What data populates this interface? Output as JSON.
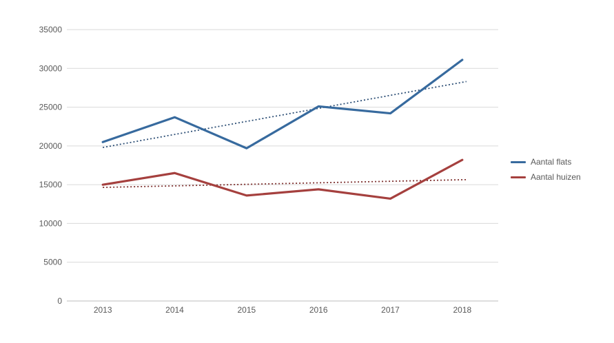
{
  "chart_data": {
    "type": "line",
    "title": "",
    "xlabel": "",
    "ylabel": "",
    "categories": [
      "2013",
      "2014",
      "2015",
      "2016",
      "2017",
      "2018"
    ],
    "series": [
      {
        "name": "Aantal flats",
        "color": "#376a9e",
        "trend_color": "#2b4d74",
        "values": [
          20500,
          23700,
          19700,
          25100,
          24200,
          31100
        ],
        "trendline": {
          "type": "linear",
          "start": 19800,
          "end": 28300
        }
      },
      {
        "name": "Aantal huizen",
        "color": "#a5403e",
        "trend_color": "#7d2f2d",
        "values": [
          15000,
          16500,
          13600,
          14400,
          13200,
          18200
        ],
        "trendline": {
          "type": "linear",
          "start": 14650,
          "end": 15650
        }
      }
    ],
    "ylim": [
      0,
      35000
    ],
    "ytick_step": 5000,
    "yticks": [
      "0",
      "5000",
      "10000",
      "15000",
      "20000",
      "25000",
      "30000",
      "35000"
    ],
    "grid": true,
    "grid_color": "#d9d9d9",
    "axis_line_color": "#bdbdbd",
    "tick_label_color": "#595959",
    "legend_position": "right"
  }
}
